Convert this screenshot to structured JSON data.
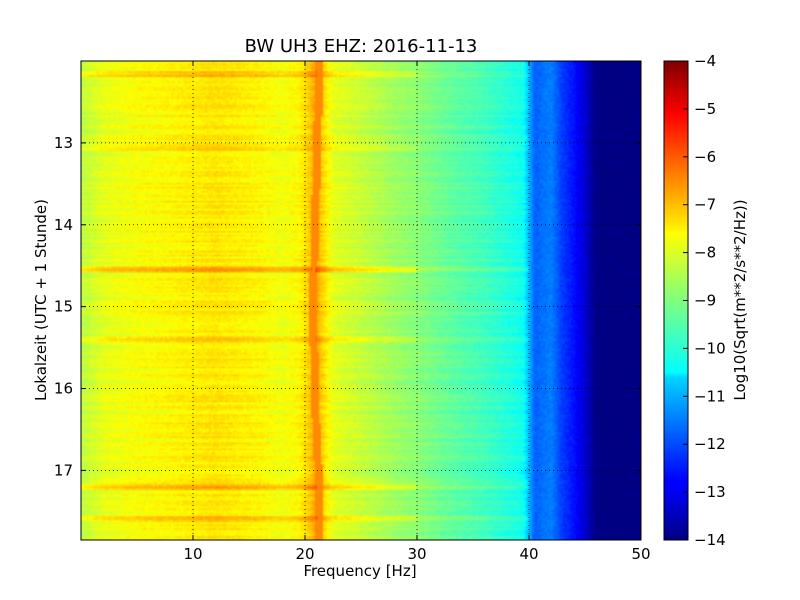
{
  "chart_data": {
    "type": "heatmap",
    "title": "BW UH3 EHZ: 2016-11-13",
    "xlabel": "Frequency [Hz]",
    "ylabel": "Lokalzeit (UTC + 1 Stunde)",
    "xlim": [
      0,
      50
    ],
    "ylim": [
      12.0,
      17.85
    ],
    "x_ticks": [
      10,
      20,
      30,
      40,
      50
    ],
    "x_tick_labels": [
      "10",
      "20",
      "30",
      "40",
      "50"
    ],
    "y_ticks": [
      13,
      14,
      15,
      16,
      17
    ],
    "y_tick_labels": [
      "13",
      "14",
      "15",
      "16",
      "17"
    ],
    "grid": true,
    "colormap": "jet",
    "colorbar": {
      "label": "Log10(Sqrt(m**2/s**2/Hz))",
      "range": [
        -14,
        -4
      ],
      "ticks": [
        -4,
        -5,
        -6,
        -7,
        -8,
        -9,
        -10,
        -11,
        -12,
        -13,
        -14
      ],
      "tick_labels": [
        "−4",
        "−5",
        "−6",
        "−7",
        "−8",
        "−9",
        "−10",
        "−11",
        "−12",
        "−13",
        "−14"
      ]
    },
    "spectral_profile": {
      "frequency_hz": [
        0,
        2,
        5,
        8,
        10,
        12,
        14,
        16,
        18,
        19.5,
        20.5,
        21,
        21.5,
        22.5,
        25,
        28,
        30,
        33,
        36,
        38,
        39.5,
        40.5,
        42,
        43,
        44,
        45,
        46,
        50
      ],
      "value": [
        -8.4,
        -8.0,
        -7.8,
        -7.7,
        -7.6,
        -7.5,
        -7.6,
        -7.7,
        -7.9,
        -7.7,
        -7.2,
        -6.8,
        -7.3,
        -8.0,
        -8.3,
        -8.7,
        -8.9,
        -9.3,
        -9.6,
        -9.9,
        -10.1,
        -11.8,
        -11.5,
        -12.2,
        -12.6,
        -13.2,
        -14.0,
        -14.0
      ]
    },
    "line_trace": {
      "name": "",
      "time_h": [
        12.0,
        12.5,
        13.0,
        13.5,
        14.0,
        14.5,
        15.0,
        15.5,
        16.0,
        16.5,
        17.0,
        17.5,
        17.85
      ],
      "frequency_hz": [
        21.3,
        21.2,
        21.1,
        21.0,
        20.9,
        20.8,
        20.7,
        20.8,
        20.9,
        21.0,
        21.2,
        21.3,
        21.3
      ],
      "value": -6.6
    },
    "horizontal_bands": [
      {
        "time_h": 12.15,
        "delta": 0.5
      },
      {
        "time_h": 13.05,
        "delta": 0.3
      },
      {
        "time_h": 14.55,
        "delta": 0.8
      },
      {
        "time_h": 15.4,
        "delta": 0.3
      },
      {
        "time_h": 17.2,
        "delta": 0.6
      },
      {
        "time_h": 17.6,
        "delta": 0.4
      }
    ]
  }
}
